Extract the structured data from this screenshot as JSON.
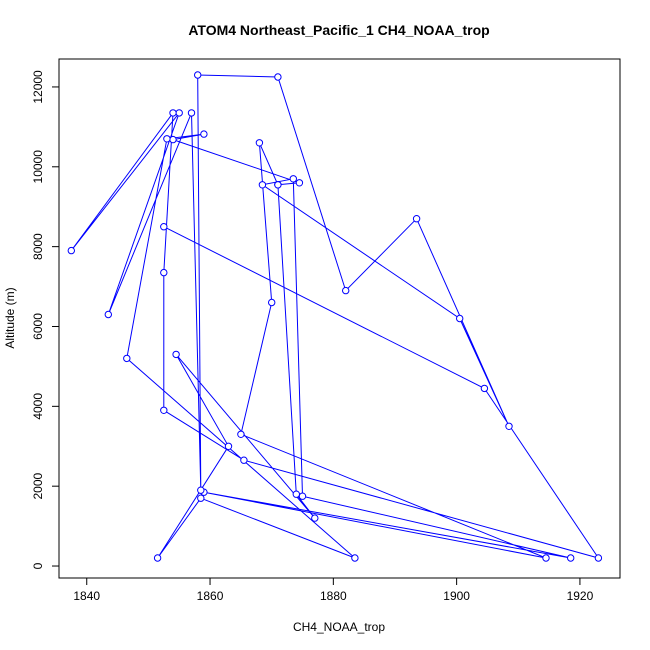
{
  "chart_data": {
    "type": "line",
    "title": "ATOM4 Northeast_Pacific_1 CH4_NOAA_trop",
    "xlabel": "CH4_NOAA_trop",
    "ylabel": "Altitude (m)",
    "xlim": [
      1835.5,
      1926.5
    ],
    "ylim": [
      -300,
      12700
    ],
    "xticks": [
      1840,
      1860,
      1880,
      1900,
      1920
    ],
    "yticks": [
      0,
      2000,
      4000,
      6000,
      8000,
      10000,
      12000
    ],
    "grid": false,
    "legend": "none",
    "series": [
      {
        "color": "#0000ff",
        "marker": "open-circle",
        "points": [
          [
            1871.0,
            9550
          ],
          [
            1874.5,
            9600
          ],
          [
            1854.0,
            10680
          ],
          [
            1859.0,
            10820
          ],
          [
            1853.0,
            10700
          ],
          [
            1846.5,
            5200
          ],
          [
            1883.5,
            200
          ],
          [
            1858.5,
            1700
          ],
          [
            1851.5,
            200
          ],
          [
            1863.0,
            3000
          ],
          [
            1854.5,
            5300
          ],
          [
            1877.0,
            1200
          ],
          [
            1874.0,
            1800
          ],
          [
            1871.0,
            9550
          ],
          [
            1868.0,
            10600
          ],
          [
            1870.0,
            6600
          ],
          [
            1865.0,
            3300
          ],
          [
            1914.5,
            200
          ],
          [
            1859.0,
            1850
          ],
          [
            1918.5,
            200
          ],
          [
            1875.0,
            1750
          ],
          [
            1873.5,
            9700
          ],
          [
            1868.5,
            9550
          ],
          [
            1900.5,
            6200
          ],
          [
            1908.5,
            3500
          ],
          [
            1893.5,
            8700
          ],
          [
            1882.0,
            6900
          ],
          [
            1871.0,
            12250
          ],
          [
            1858.0,
            12300
          ],
          [
            1858.5,
            1900
          ],
          [
            1857.0,
            11350
          ],
          [
            1843.5,
            6300
          ],
          [
            1855.0,
            11350
          ],
          [
            1837.5,
            7900
          ],
          [
            1854.0,
            11350
          ],
          [
            1852.5,
            7350
          ],
          [
            1852.5,
            3900
          ],
          [
            1865.5,
            2650
          ],
          [
            1923.0,
            200
          ],
          [
            1904.5,
            4450
          ],
          [
            1852.5,
            8500
          ]
        ]
      }
    ]
  }
}
